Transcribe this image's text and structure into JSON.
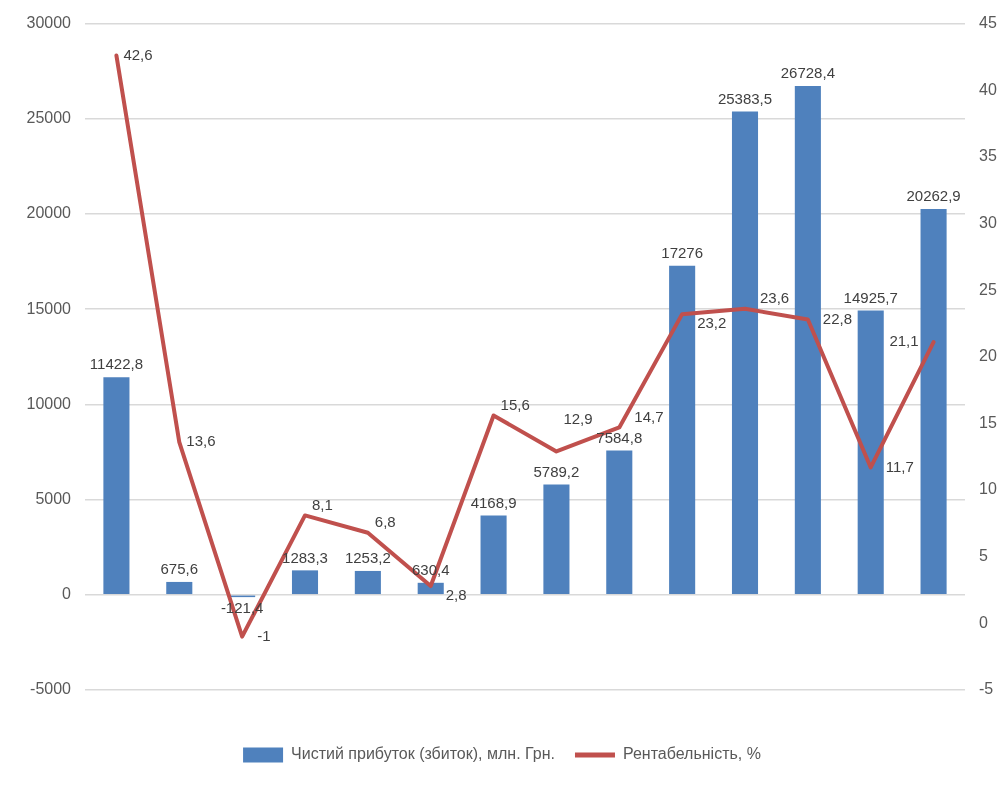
{
  "chart_data": {
    "type": "bar",
    "categories": [
      null,
      null,
      null,
      null,
      null,
      null,
      null,
      null,
      null,
      null,
      null,
      null,
      null,
      null
    ],
    "series": [
      {
        "name": "Чистий прибуток (збиток), млн. Грн.",
        "type": "bar",
        "color": "#4f81bd",
        "values": [
          11422.8,
          675.6,
          -121.4,
          1283.3,
          1253.2,
          630.4,
          4168.9,
          5789.2,
          7584.8,
          17276,
          25383.5,
          26728.4,
          14925.7,
          20262.9
        ],
        "value_labels": [
          "11422,8",
          "675,6",
          "-121,4",
          "1283,3",
          "1253,2",
          "630,4",
          "4168,9",
          "5789,2",
          "7584,8",
          "17276",
          "25383,5",
          "26728,4",
          "14925,7",
          "20262,9"
        ]
      },
      {
        "name": "Рентабельність, %",
        "type": "line",
        "axis": "y2",
        "color": "#c0504d",
        "marker": "none",
        "values": [
          42.6,
          13.6,
          -1,
          8.1,
          6.8,
          2.8,
          15.6,
          12.9,
          14.7,
          23.2,
          23.6,
          22.8,
          11.7,
          21.1
        ],
        "value_labels": [
          "42,6",
          "13,6",
          "-1",
          "8,1",
          "6,8",
          "2,8",
          "15,6",
          "12,9",
          "14,7",
          "23,2",
          "23,6",
          "22,8",
          "11,7",
          "21,1"
        ]
      }
    ],
    "ylim": [
      -5000,
      30000
    ],
    "yticks": [
      -5000,
      0,
      5000,
      10000,
      15000,
      20000,
      25000,
      30000
    ],
    "y2lim": [
      -5,
      45
    ],
    "y2ticks": [
      -5,
      0,
      5,
      10,
      15,
      20,
      25,
      30,
      35,
      40,
      45
    ],
    "grid": "y",
    "legend": "bottom"
  }
}
